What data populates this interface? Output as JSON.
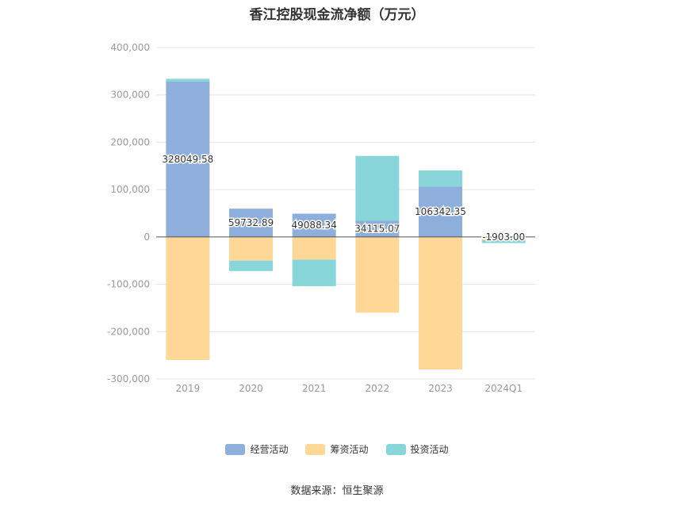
{
  "chart_data": {
    "type": "bar",
    "stacked": true,
    "title": "香江控股现金流净额（万元）",
    "categories": [
      "2019",
      "2020",
      "2021",
      "2022",
      "2023",
      "2024Q1"
    ],
    "series": [
      {
        "name": "经营活动",
        "color": "#8eaedb",
        "values": [
          328049.58,
          59732.89,
          49088.34,
          34115.07,
          106342.35,
          -1903.0
        ],
        "labels": [
          "328049.58",
          "59732.89",
          "49088.34",
          "34115.07",
          "106342.35",
          "-1903.00"
        ]
      },
      {
        "name": "筹资活动",
        "color": "#ffd898",
        "values": [
          -260000,
          -50000,
          -48000,
          -160000,
          -280000,
          -5000
        ]
      },
      {
        "name": "投资活动",
        "color": "#88d6da",
        "values": [
          6000,
          -22000,
          -56000,
          137000,
          34000,
          -6000
        ]
      }
    ],
    "y_ticks": [
      "400,000",
      "300,000",
      "200,000",
      "100,000",
      "0",
      "-100,000",
      "-200,000",
      "-300,000"
    ],
    "y_tick_values": [
      400000,
      300000,
      200000,
      100000,
      0,
      -100000,
      -200000,
      -300000
    ],
    "ylim": [
      -300000,
      400000
    ],
    "grid": true,
    "legend_position": "bottom"
  },
  "source": "数据来源：恒生聚源"
}
